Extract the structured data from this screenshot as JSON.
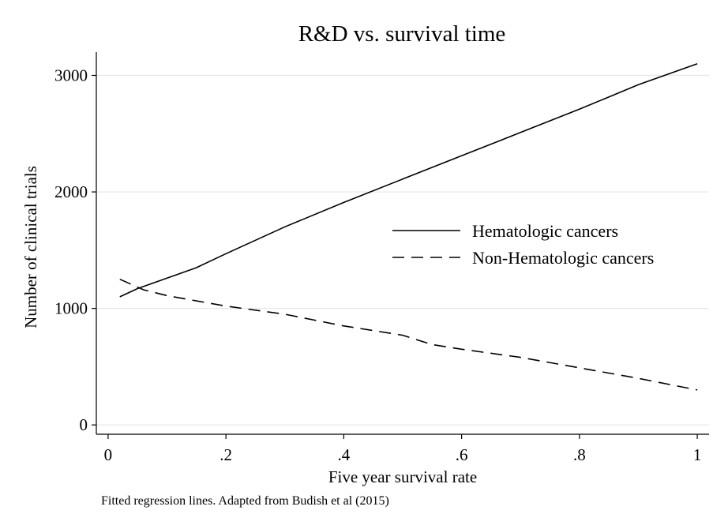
{
  "chart_data": {
    "type": "line",
    "title": "R&D vs. survival time",
    "xlabel": "Five year survival rate",
    "ylabel": "Number of clinical trials",
    "note": "Fitted regression lines. Adapted from Budish et al (2015)",
    "xlim": [
      -0.02,
      1.02
    ],
    "ylim": [
      -80,
      3200
    ],
    "x_ticks": [
      0,
      0.2,
      0.4,
      0.6,
      0.8,
      1
    ],
    "x_tick_labels": [
      "0",
      ".2",
      ".4",
      ".6",
      ".8",
      "1"
    ],
    "y_ticks": [
      0,
      1000,
      2000,
      3000
    ],
    "y_tick_labels": [
      "0",
      "1000",
      "2000",
      "3000"
    ],
    "grid": "horizontal",
    "legend_position": "right-middle",
    "series": [
      {
        "name": "Hematologic cancers",
        "style": "solid",
        "x": [
          0.02,
          0.05,
          0.1,
          0.15,
          0.2,
          0.3,
          0.4,
          0.5,
          0.6,
          0.7,
          0.8,
          0.9,
          1.0
        ],
        "y": [
          1100,
          1170,
          1260,
          1350,
          1470,
          1700,
          1910,
          2110,
          2310,
          2510,
          2710,
          2920,
          3100
        ]
      },
      {
        "name": "Non-Hematologic cancers",
        "style": "dashed",
        "x": [
          0.02,
          0.06,
          0.1,
          0.2,
          0.3,
          0.4,
          0.5,
          0.55,
          0.6,
          0.7,
          0.8,
          0.9,
          1.0
        ],
        "y": [
          1250,
          1160,
          1110,
          1020,
          950,
          850,
          770,
          690,
          650,
          580,
          490,
          400,
          300
        ]
      }
    ]
  }
}
